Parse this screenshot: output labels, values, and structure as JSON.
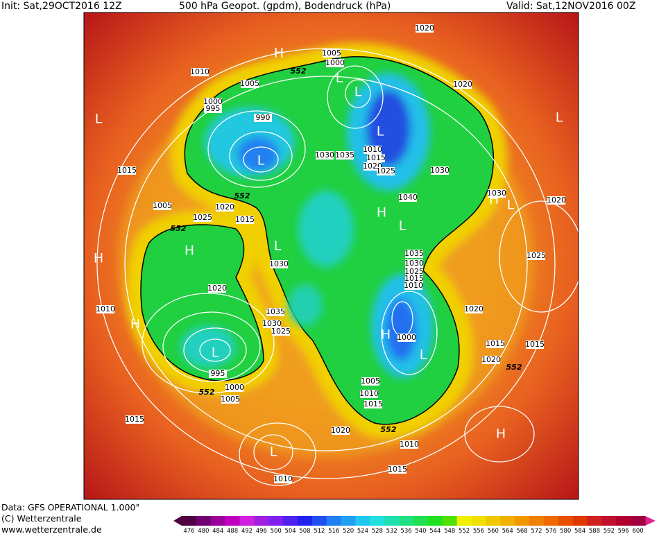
{
  "header": {
    "init": "Init: Sat,29OCT2016 12Z",
    "title": "500 hPa Geopot. (gpdm), Bodendruck (hPa)",
    "valid": "Valid: Sat,12NOV2016 00Z"
  },
  "footer": {
    "data": "Data: GFS OPERATIONAL 1.000°",
    "copyright": "(C) Wetterzentrale",
    "url": "www.wetterzentrale.de"
  },
  "colorbar": {
    "values": [
      476,
      480,
      484,
      488,
      492,
      496,
      500,
      504,
      508,
      512,
      516,
      520,
      524,
      528,
      532,
      536,
      540,
      544,
      548,
      552,
      556,
      560,
      564,
      568,
      572,
      576,
      580,
      584,
      588,
      592,
      596,
      600
    ],
    "colors": [
      "#500040",
      "#700070",
      "#9a009a",
      "#c000c0",
      "#d020e0",
      "#a020e0",
      "#8020f0",
      "#5020f0",
      "#2020f0",
      "#2050f0",
      "#2080f0",
      "#20a0f0",
      "#20c8f0",
      "#20e0e0",
      "#20e0b0",
      "#20e080",
      "#20e050",
      "#20e020",
      "#50e000",
      "#f0f000",
      "#f0e000",
      "#f0c800",
      "#f0b000",
      "#f09800",
      "#f08000",
      "#f06800",
      "#e85000",
      "#e03800",
      "#d02020",
      "#c01030",
      "#b00030",
      "#a00040"
    ]
  },
  "map_labels": [
    "H",
    "1005",
    "1000",
    "552",
    "1010",
    "L",
    "L",
    "1005",
    "1000",
    "995",
    "L",
    "990",
    "L",
    "L",
    "1015",
    "1030",
    "1035",
    "1010",
    "1015",
    "1020",
    "1025",
    "1030",
    "1040",
    "1020",
    "1020",
    "L",
    "1030",
    "H",
    "L",
    "1020",
    "1005",
    "552",
    "1020",
    "1025",
    "1015",
    "552",
    "H",
    "L",
    "H",
    "L",
    "1030",
    "1025",
    "1035",
    "1030",
    "1025",
    "1015",
    "1010",
    "H",
    "1020",
    "1010",
    "1020",
    "H",
    "1035",
    "1030",
    "1025",
    "H",
    "1000",
    "L",
    "L",
    "1015",
    "1015",
    "1020",
    "552",
    "995",
    "1000",
    "1005",
    "552",
    "1005",
    "1010",
    "1015",
    "1015",
    "1020",
    "552",
    "1010",
    "L",
    "H",
    "1015",
    "1010"
  ]
}
